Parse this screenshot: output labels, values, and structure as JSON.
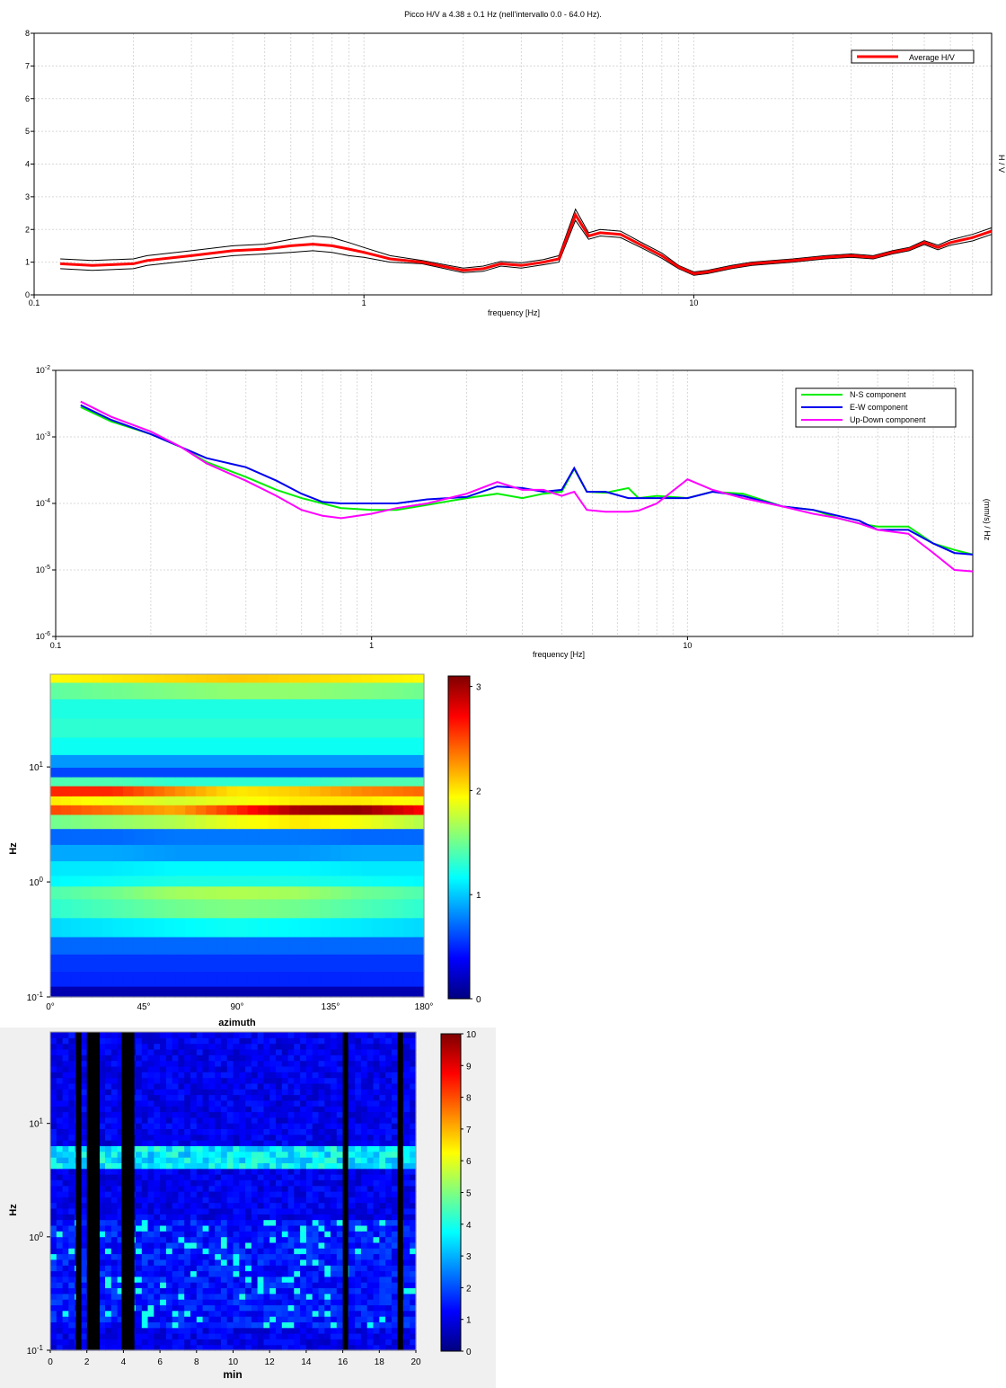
{
  "chart_data": [
    {
      "type": "line",
      "title": "Picco H/V a 4.38 ± 0.1 Hz (nell'intervallo 0.0 - 64.0 Hz).",
      "xlabel": "frequency [Hz]",
      "ylabel": "H / V",
      "xscale": "log",
      "xlim": [
        0.1,
        80
      ],
      "ylim": [
        0,
        8
      ],
      "xticks": [
        "0.1",
        "1",
        "10"
      ],
      "yticks": [
        "0",
        "1",
        "2",
        "3",
        "4",
        "5",
        "6",
        "7",
        "8"
      ],
      "legend": "top-right",
      "grid": true,
      "x": [
        0.12,
        0.15,
        0.2,
        0.22,
        0.3,
        0.4,
        0.5,
        0.6,
        0.7,
        0.8,
        0.9,
        1.0,
        1.2,
        1.5,
        2.0,
        2.3,
        2.6,
        3.0,
        3.5,
        3.9,
        4.38,
        4.8,
        5.2,
        6.0,
        7.0,
        8.0,
        9.0,
        10.0,
        11.0,
        13.0,
        15.0,
        20.0,
        25.0,
        30.0,
        35.0,
        40.0,
        45.0,
        50.0,
        55.0,
        60.0,
        70.0,
        80.0
      ],
      "series": [
        {
          "name": "Average H/V",
          "color": "#ff0000",
          "values": [
            0.95,
            0.9,
            0.95,
            1.05,
            1.2,
            1.35,
            1.4,
            1.5,
            1.55,
            1.5,
            1.4,
            1.3,
            1.1,
            1.0,
            0.75,
            0.8,
            0.95,
            0.9,
            1.0,
            1.1,
            2.45,
            1.8,
            1.9,
            1.85,
            1.5,
            1.2,
            0.85,
            0.65,
            0.7,
            0.85,
            0.95,
            1.05,
            1.15,
            1.2,
            1.15,
            1.3,
            1.4,
            1.6,
            1.45,
            1.6,
            1.75,
            1.95
          ]
        },
        {
          "name": "",
          "color": "#000000",
          "values": [
            1.1,
            1.05,
            1.1,
            1.2,
            1.35,
            1.5,
            1.55,
            1.7,
            1.8,
            1.75,
            1.6,
            1.45,
            1.2,
            1.05,
            0.82,
            0.88,
            1.02,
            0.98,
            1.08,
            1.2,
            2.62,
            1.9,
            2.0,
            1.95,
            1.58,
            1.28,
            0.9,
            0.7,
            0.75,
            0.9,
            1.0,
            1.1,
            1.2,
            1.25,
            1.2,
            1.35,
            1.45,
            1.66,
            1.52,
            1.68,
            1.85,
            2.05
          ]
        },
        {
          "name": "",
          "color": "#000000",
          "values": [
            0.8,
            0.75,
            0.8,
            0.9,
            1.05,
            1.2,
            1.25,
            1.3,
            1.35,
            1.3,
            1.2,
            1.15,
            1.0,
            0.95,
            0.68,
            0.72,
            0.88,
            0.82,
            0.92,
            1.0,
            2.28,
            1.7,
            1.8,
            1.75,
            1.42,
            1.12,
            0.8,
            0.6,
            0.65,
            0.8,
            0.9,
            1.0,
            1.1,
            1.15,
            1.1,
            1.25,
            1.35,
            1.54,
            1.38,
            1.52,
            1.65,
            1.85
          ]
        }
      ]
    },
    {
      "type": "line",
      "xlabel": "frequency [Hz]",
      "ylabel": "(mm/s) / Hz",
      "xscale": "log",
      "yscale": "log",
      "xlim": [
        0.1,
        80
      ],
      "ylim": [
        1e-06,
        0.01
      ],
      "xticks": [
        "0.1",
        "1",
        "10"
      ],
      "yticks": [
        "-6",
        "-5",
        "-4",
        "-3",
        "-2"
      ],
      "ytick_base": "10",
      "legend": "top-right",
      "grid": true,
      "x": [
        0.12,
        0.15,
        0.2,
        0.25,
        0.3,
        0.4,
        0.5,
        0.6,
        0.7,
        0.8,
        1.0,
        1.2,
        1.5,
        2.0,
        2.5,
        3.0,
        3.5,
        4.0,
        4.38,
        4.8,
        5.5,
        6.5,
        7.0,
        8.0,
        10.0,
        12.0,
        15.0,
        20.0,
        25.0,
        30.0,
        35.0,
        40.0,
        50.0,
        60.0,
        70.0,
        80.0
      ],
      "series": [
        {
          "name": "N-S component",
          "color": "#00ee00",
          "values": [
            0.0028,
            0.0017,
            0.0011,
            0.0007,
            0.00042,
            0.00025,
            0.00016,
            0.00012,
            0.0001,
            8.5e-05,
            8e-05,
            8e-05,
            9.5e-05,
            0.00012,
            0.00014,
            0.00012,
            0.00014,
            0.00015,
            0.00033,
            0.00015,
            0.000145,
            0.00017,
            0.00012,
            0.00013,
            0.00012,
            0.00015,
            0.00014,
            9e-05,
            8e-05,
            6e-05,
            5e-05,
            4.5e-05,
            4.5e-05,
            2.5e-05,
            2e-05,
            1.7e-05
          ]
        },
        {
          "name": "E-W component",
          "color": "#0000ee",
          "values": [
            0.003,
            0.0018,
            0.0011,
            0.0007,
            0.00048,
            0.00035,
            0.00022,
            0.00014,
            0.000105,
            0.0001,
            0.0001,
            0.0001,
            0.000115,
            0.000125,
            0.00018,
            0.00017,
            0.00015,
            0.00016,
            0.00034,
            0.00015,
            0.00015,
            0.00012,
            0.00012,
            0.00012,
            0.00012,
            0.00015,
            0.00013,
            9e-05,
            8e-05,
            6.5e-05,
            5.5e-05,
            4e-05,
            4e-05,
            2.5e-05,
            1.8e-05,
            1.7e-05
          ]
        },
        {
          "name": "Up-Down component",
          "color": "#ff00ff",
          "values": [
            0.0034,
            0.002,
            0.0012,
            0.0007,
            0.0004,
            0.00022,
            0.00013,
            8e-05,
            6.5e-05,
            6e-05,
            7e-05,
            8.5e-05,
            0.0001,
            0.00014,
            0.00021,
            0.00016,
            0.00016,
            0.00013,
            0.00015,
            8e-05,
            7.5e-05,
            7.5e-05,
            7.8e-05,
            0.0001,
            0.00023,
            0.00016,
            0.00012,
            9e-05,
            7e-05,
            6e-05,
            5e-05,
            4e-05,
            3.5e-05,
            1.8e-05,
            1e-05,
            9.5e-06
          ]
        }
      ]
    },
    {
      "type": "heatmap",
      "xlabel": "azimuth",
      "ylabel": "Hz",
      "xlim": [
        0,
        180
      ],
      "xticks": [
        "0°",
        "45°",
        "90°",
        "135°",
        "180°"
      ],
      "yscale": "log",
      "ylim": [
        0.1,
        64
      ],
      "yticks": [
        "-1",
        "0",
        "1"
      ],
      "ytick_base": "10",
      "colorbar": {
        "min": 0,
        "max": 3.1,
        "ticks": [
          "0",
          "1",
          "2",
          "3"
        ]
      },
      "frequency_hz": [
        0.11,
        0.14,
        0.2,
        0.28,
        0.4,
        0.6,
        0.85,
        1.0,
        1.3,
        1.8,
        2.5,
        3.4,
        4.4,
        5.0,
        6.3,
        7.5,
        9.0,
        11.0,
        15.0,
        22.0,
        32.0,
        48.0,
        62.0
      ],
      "azimuth_deg": [
        0,
        30,
        60,
        90,
        120,
        150,
        180
      ],
      "values": [
        [
          0.15,
          0.15,
          0.15,
          0.15,
          0.15,
          0.15,
          0.15
        ],
        [
          0.5,
          0.5,
          0.5,
          0.5,
          0.5,
          0.5,
          0.5
        ],
        [
          0.55,
          0.55,
          0.55,
          0.55,
          0.55,
          0.55,
          0.55
        ],
        [
          0.7,
          0.7,
          0.7,
          0.7,
          0.7,
          0.7,
          0.7
        ],
        [
          1.05,
          1.1,
          1.15,
          1.2,
          1.15,
          1.1,
          1.05
        ],
        [
          1.3,
          1.4,
          1.5,
          1.55,
          1.5,
          1.4,
          1.3
        ],
        [
          1.4,
          1.5,
          1.65,
          1.7,
          1.65,
          1.5,
          1.4
        ],
        [
          1.15,
          1.2,
          1.25,
          1.25,
          1.25,
          1.2,
          1.15
        ],
        [
          1.1,
          1.1,
          1.15,
          1.15,
          1.15,
          1.1,
          1.1
        ],
        [
          0.9,
          0.9,
          0.85,
          0.85,
          0.85,
          0.9,
          0.9
        ],
        [
          0.7,
          0.7,
          0.75,
          0.75,
          0.75,
          0.7,
          0.7
        ],
        [
          1.5,
          1.6,
          1.7,
          1.9,
          2.0,
          1.9,
          1.7
        ],
        [
          2.5,
          2.35,
          2.2,
          2.6,
          3.0,
          3.05,
          2.7
        ],
        [
          2.0,
          1.9,
          1.8,
          1.9,
          2.0,
          2.0,
          1.9
        ],
        [
          2.6,
          2.6,
          2.3,
          2.0,
          2.1,
          2.3,
          2.4
        ],
        [
          1.4,
          1.4,
          1.3,
          1.3,
          1.3,
          1.4,
          1.4
        ],
        [
          0.6,
          0.6,
          0.6,
          0.6,
          0.6,
          0.6,
          0.6
        ],
        [
          0.85,
          0.85,
          0.85,
          0.85,
          0.85,
          0.85,
          0.85
        ],
        [
          1.2,
          1.2,
          1.2,
          1.2,
          1.2,
          1.2,
          1.2
        ],
        [
          1.3,
          1.3,
          1.3,
          1.3,
          1.3,
          1.3,
          1.3
        ],
        [
          1.25,
          1.25,
          1.25,
          1.25,
          1.25,
          1.25,
          1.25
        ],
        [
          1.45,
          1.5,
          1.55,
          1.6,
          1.6,
          1.55,
          1.5
        ],
        [
          1.95,
          2.0,
          2.05,
          2.1,
          2.05,
          2.0,
          1.95
        ]
      ]
    },
    {
      "type": "heatmap",
      "xlabel": "min",
      "ylabel": "Hz",
      "xlim": [
        0,
        20
      ],
      "xticks": [
        "0",
        "2",
        "4",
        "6",
        "8",
        "10",
        "12",
        "14",
        "16",
        "18",
        "20"
      ],
      "yscale": "log",
      "ylim": [
        0.1,
        64
      ],
      "yticks": [
        "-1",
        "0",
        "1"
      ],
      "ytick_base": "10",
      "colorbar": {
        "min": 0,
        "max": 10,
        "ticks": [
          "0",
          "1",
          "2",
          "3",
          "4",
          "5",
          "6",
          "7",
          "8",
          "9",
          "10"
        ]
      },
      "masked_windows_min": [
        [
          1.4,
          1.7
        ],
        [
          2.0,
          2.7
        ],
        [
          3.9,
          4.6
        ],
        [
          16.0,
          16.3
        ],
        [
          19.0,
          19.3
        ]
      ],
      "peak_band_hz": [
        3.8,
        6.3
      ],
      "peak_band_level": 2.8,
      "background_level": 0.9
    }
  ]
}
